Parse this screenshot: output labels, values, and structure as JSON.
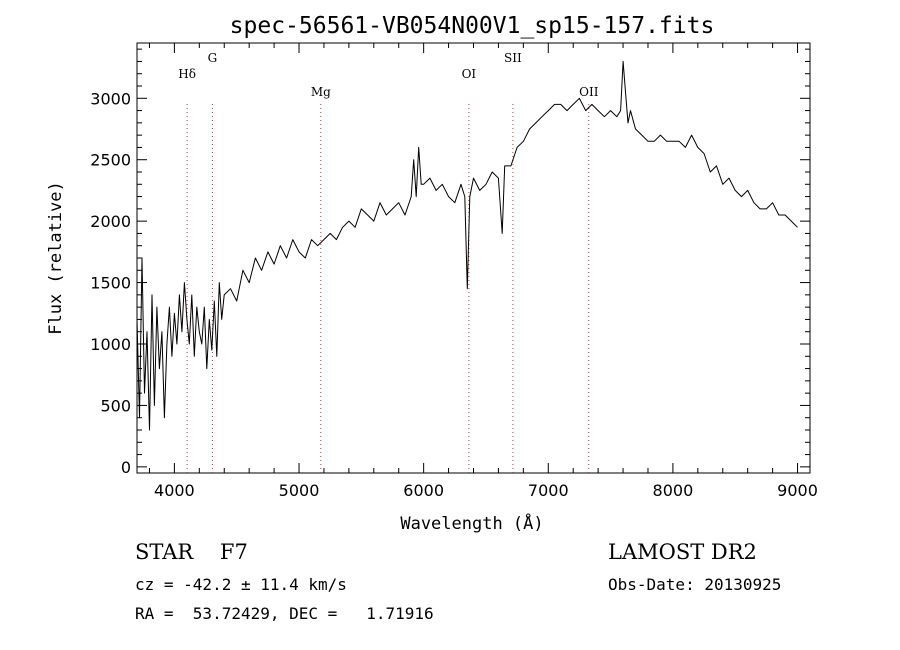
{
  "chart_data": {
    "type": "line",
    "title": "spec-56561-VB054N00V1_sp15-157.fits",
    "xlabel": "Wavelength (Å)",
    "ylabel": "Flux (relative)",
    "xlim": [
      3700,
      9100
    ],
    "ylim": [
      -50,
      3450
    ],
    "xticks": [
      4000,
      5000,
      6000,
      7000,
      8000,
      9000
    ],
    "yticks": [
      0,
      500,
      1000,
      1500,
      2000,
      2500,
      3000
    ],
    "grid": false,
    "series": [
      {
        "x": [
          3700,
          3720,
          3740,
          3760,
          3780,
          3800,
          3820,
          3840,
          3860,
          3880,
          3900,
          3920,
          3940,
          3960,
          3980,
          4000,
          4020,
          4040,
          4060,
          4080,
          4100,
          4120,
          4140,
          4160,
          4180,
          4200,
          4220,
          4240,
          4260,
          4280,
          4300,
          4320,
          4340,
          4360,
          4380,
          4400,
          4450,
          4500,
          4550,
          4600,
          4650,
          4700,
          4750,
          4800,
          4850,
          4900,
          4950,
          5000,
          5050,
          5100,
          5150,
          5200,
          5250,
          5300,
          5350,
          5400,
          5450,
          5500,
          5550,
          5600,
          5650,
          5700,
          5750,
          5800,
          5850,
          5900,
          5920,
          5940,
          5960,
          5980,
          6000,
          6050,
          6100,
          6150,
          6200,
          6250,
          6300,
          6330,
          6350,
          6370,
          6400,
          6450,
          6500,
          6550,
          6600,
          6630,
          6650,
          6700,
          6750,
          6800,
          6850,
          6900,
          6950,
          7000,
          7050,
          7100,
          7150,
          7200,
          7250,
          7300,
          7350,
          7400,
          7450,
          7500,
          7550,
          7580,
          7600,
          7620,
          7640,
          7660,
          7700,
          7750,
          7800,
          7850,
          7900,
          7950,
          8000,
          8050,
          8100,
          8150,
          8200,
          8250,
          8300,
          8350,
          8400,
          8450,
          8500,
          8550,
          8600,
          8650,
          8700,
          8750,
          8800,
          8850,
          8900,
          8950,
          9000
        ],
        "y": [
          1200,
          400,
          1700,
          600,
          1100,
          300,
          1400,
          500,
          1300,
          800,
          1100,
          400,
          1000,
          1300,
          900,
          1250,
          1000,
          1400,
          1100,
          1500,
          1200,
          1000,
          1400,
          900,
          1300,
          1100,
          1000,
          1300,
          800,
          1200,
          950,
          1350,
          900,
          1500,
          1200,
          1400,
          1450,
          1350,
          1600,
          1500,
          1700,
          1600,
          1750,
          1650,
          1800,
          1700,
          1850,
          1750,
          1700,
          1850,
          1800,
          1850,
          1900,
          1850,
          1950,
          2000,
          1950,
          2100,
          2050,
          2000,
          2150,
          2050,
          2100,
          2150,
          2050,
          2200,
          2500,
          2200,
          2600,
          2300,
          2300,
          2350,
          2250,
          2300,
          2200,
          2150,
          2300,
          2200,
          1450,
          2200,
          2350,
          2250,
          2300,
          2400,
          2350,
          1900,
          2450,
          2450,
          2600,
          2650,
          2750,
          2800,
          2850,
          2900,
          2950,
          2950,
          2900,
          2950,
          3000,
          2900,
          2950,
          2900,
          2850,
          2900,
          2850,
          2900,
          3300,
          3050,
          2800,
          2900,
          2750,
          2700,
          2650,
          2650,
          2700,
          2650,
          2650,
          2650,
          2600,
          2700,
          2600,
          2550,
          2400,
          2450,
          2300,
          2350,
          2250,
          2200,
          2250,
          2150,
          2100,
          2100,
          2150,
          2050,
          2050,
          2000,
          1950
        ]
      }
    ],
    "lines": [
      {
        "label": "Hδ",
        "x": 4102
      },
      {
        "label": "G",
        "x": 4305
      },
      {
        "label": "Mg",
        "x": 5175
      },
      {
        "label": "OI",
        "x": 6363
      },
      {
        "label": "SII",
        "x": 6716
      },
      {
        "label": "OII",
        "x": 7325
      }
    ]
  },
  "info": {
    "classification": "STAR    F7",
    "survey": "LAMOST DR2",
    "velocity": "cz = -42.2 ± 11.4 km/s",
    "obs_date": "Obs-Date: 20130925",
    "coords": "RA =  53.72429, DEC =   1.71916"
  }
}
